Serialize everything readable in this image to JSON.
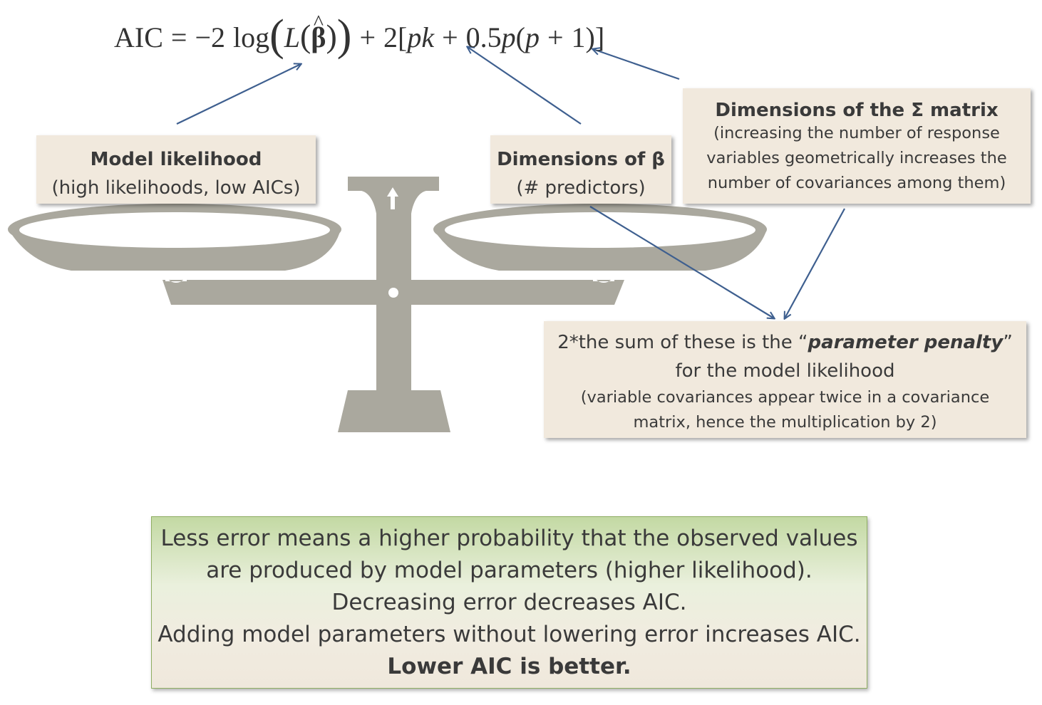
{
  "formula": {
    "aic": "AIC",
    "eq": "=",
    "minus": "−",
    "two": "2",
    "log": "log",
    "L": "L",
    "beta": "β",
    "hat": "^",
    "open_paren": "(",
    "close_paren": ")",
    "plus": "+",
    "bracket_open": "[",
    "bracket_close": "]",
    "pk": "pk",
    "half": "0.5",
    "p": "p",
    "one": "1"
  },
  "model_likelihood": {
    "title": "Model likelihood",
    "subtitle": "(high likelihoods, low AICs)"
  },
  "beta_dims": {
    "title": "Dimensions of β",
    "subtitle": "(# predictors)"
  },
  "sigma_dims": {
    "title": "Dimensions of the Σ matrix",
    "line1": "(increasing the number of response",
    "line2": "variables geometrically increases the",
    "line3": "number of covariances among them)"
  },
  "penalty": {
    "pre": "2*the sum of these is the “",
    "emph": "parameter penalty",
    "post": "”",
    "line2": "for the model likelihood",
    "line3": "(variable covariances appear twice in a covariance",
    "line4": "matrix, hence the multiplication by 2)"
  },
  "summary": {
    "line1": "Less error means a higher probability that the observed values",
    "line2": "are produced by model parameters (higher likelihood).",
    "line3": "Decreasing error decreases AIC.",
    "line4": "Adding model parameters without lowering error increases AIC.",
    "line5": "Lower AIC is better."
  },
  "colors": {
    "scale": "#aaa89e",
    "arrow": "#3e5f8f",
    "box": "#f1e9dd",
    "summary_border": "#8fae62"
  }
}
